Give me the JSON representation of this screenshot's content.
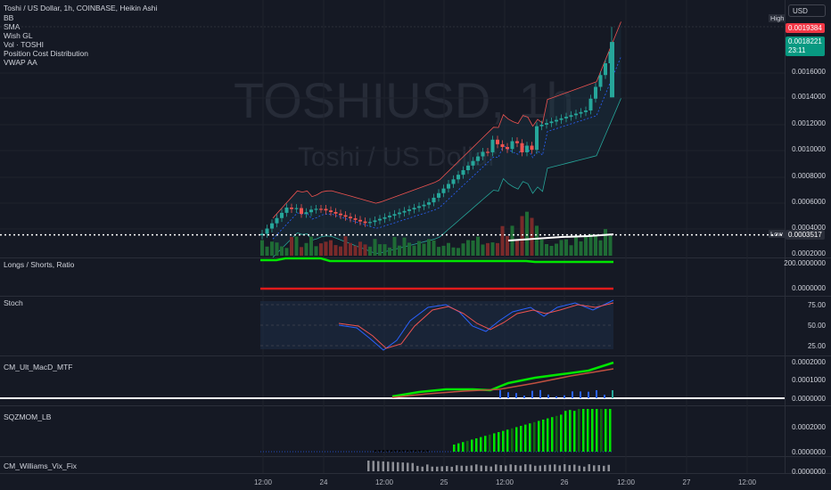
{
  "header": {
    "title": "Toshi / US Dollar, 1h, COINBASE, Heikin Ashi",
    "indicators": [
      "BB",
      "SMA",
      "Wish GL",
      "Vol · TOSHI",
      "Position Cost Distribution",
      "VWAP AA"
    ]
  },
  "watermark": {
    "symbol": "TOSHIUSD, 1h",
    "name": "Toshi / US Dollar"
  },
  "currency_button": "USD",
  "price_axis": {
    "high_label": "High",
    "high_value": "0.0019384",
    "current_value": "0.0018221",
    "countdown": "23:11",
    "low_label": "Low",
    "low_value": "0.0003517",
    "ticks": [
      "0.0016000",
      "0.0014000",
      "0.0012000",
      "0.0010000",
      "0.0008000",
      "0.0006000",
      "0.0004000",
      "0.0002000"
    ]
  },
  "panes": {
    "longs_shorts": {
      "label": "Longs / Shorts, Ratio",
      "ticks": [
        "200.0000000",
        "0.0000000"
      ]
    },
    "stoch": {
      "label": "Stoch",
      "ticks": [
        "75.00",
        "50.00",
        "25.00"
      ]
    },
    "macd": {
      "label": "CM_Ult_MacD_MTF",
      "ticks": [
        "0.0002000",
        "0.0001000",
        "0.0000000"
      ]
    },
    "sqzmom": {
      "label": "SQZMOM_LB",
      "ticks": [
        "0.0002000",
        "0.0000000"
      ]
    },
    "vix_fix": {
      "label": "CM_Williams_Vix_Fix",
      "ticks": [
        "0.0000000"
      ]
    }
  },
  "time_axis": [
    "12:00",
    "24",
    "12:00",
    "25",
    "12:00",
    "26",
    "12:00",
    "27",
    "12:00"
  ],
  "colors": {
    "up": "#26a69a",
    "down": "#ef5350",
    "bright_green": "#00e600",
    "red": "#e01b1b",
    "high_tag": "#f23645",
    "current_tag": "#089981",
    "low_tag": "#2a2e39"
  },
  "chart_data": {
    "type": "candlestick",
    "price_range": [
      0.0002,
      0.0019384
    ],
    "low": 0.0003517,
    "high": 0.0019384,
    "last": 0.0018221
  }
}
